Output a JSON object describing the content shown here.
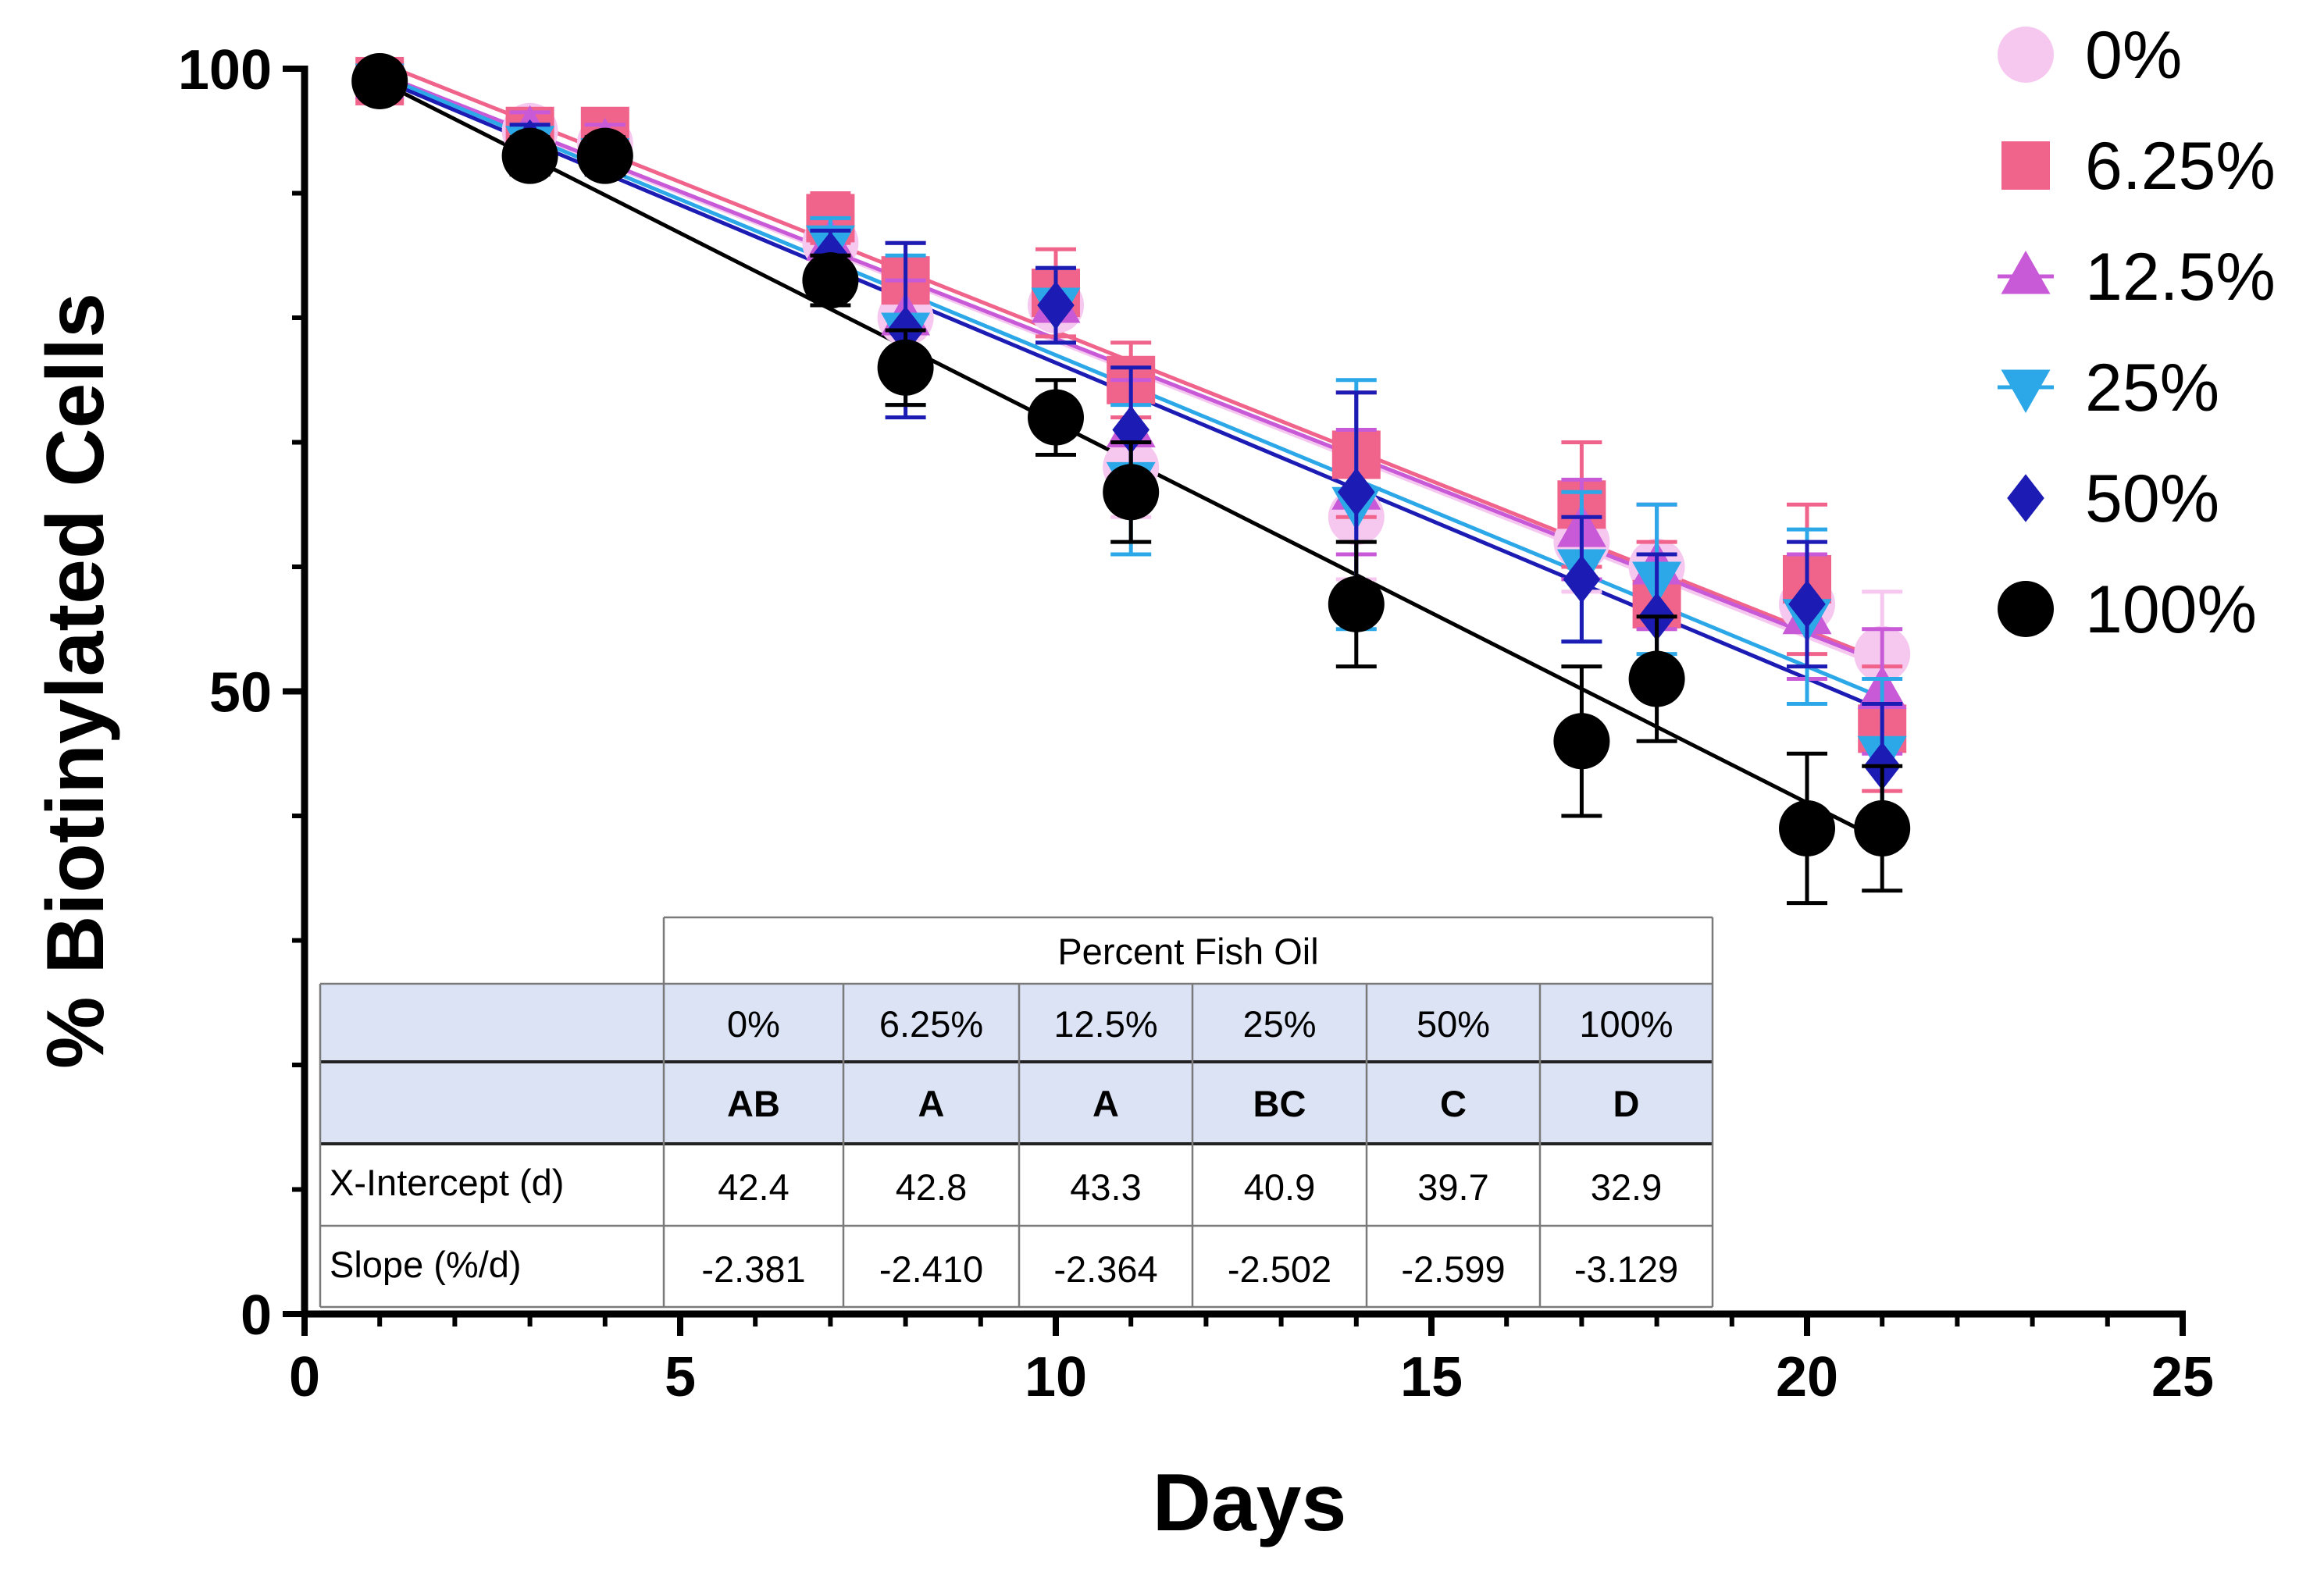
{
  "chart_data": {
    "type": "scatter",
    "title": "",
    "xlabel": "Days",
    "ylabel": "% Biotinylated Cells",
    "xlim": [
      0,
      25
    ],
    "ylim": [
      0,
      100
    ],
    "x_ticks": [
      "0",
      "5",
      "10",
      "15",
      "20",
      "25"
    ],
    "y_ticks": [
      "0",
      "50",
      "100"
    ],
    "grid": false,
    "legend_position": "top-right",
    "series": [
      {
        "name": "0%",
        "color": "#f6c8f0",
        "marker": "circle",
        "x": [
          1,
          3,
          4,
          7,
          8,
          10,
          11,
          14,
          17,
          18,
          20,
          21
        ],
        "y": [
          99,
          95,
          94,
          86,
          80,
          81,
          68,
          64,
          62,
          60,
          57,
          53
        ],
        "err": [
          1,
          1.5,
          1.5,
          2,
          3,
          3,
          4,
          5,
          4,
          5,
          5,
          5
        ],
        "fit": {
          "x0": 1,
          "y0": 99.5,
          "x1": 21,
          "y1": 52.0
        }
      },
      {
        "name": "6.25%",
        "color": "#f0648c",
        "marker": "square",
        "x": [
          1,
          3,
          4,
          7,
          8,
          10,
          11,
          14,
          17,
          18,
          20,
          21
        ],
        "y": [
          99,
          95,
          95,
          88,
          83,
          82,
          75,
          69,
          65,
          57,
          59,
          47
        ],
        "err": [
          1,
          1.5,
          1.5,
          2,
          3,
          3.5,
          3,
          5,
          5,
          5,
          6,
          5
        ],
        "fit": {
          "x0": 1,
          "y0": 100.5,
          "x1": 21,
          "y1": 52.5
        }
      },
      {
        "name": "12.5%",
        "color": "#c85ad8",
        "marker": "triangle-up",
        "x": [
          1,
          3,
          4,
          7,
          8,
          10,
          11,
          14,
          17,
          18,
          20,
          21
        ],
        "y": [
          99,
          95,
          94,
          86,
          80,
          81,
          71,
          66,
          63,
          60,
          56,
          50
        ],
        "err": [
          1,
          1.5,
          1.5,
          2,
          3,
          3,
          4,
          5,
          4,
          5,
          5,
          5
        ],
        "fit": {
          "x0": 1,
          "y0": 99.6,
          "x1": 21,
          "y1": 52.3
        }
      },
      {
        "name": "25%",
        "color": "#2ca8e8",
        "marker": "triangle-down",
        "x": [
          1,
          3,
          4,
          7,
          8,
          10,
          11,
          14,
          17,
          18,
          20,
          21
        ],
        "y": [
          99,
          94,
          93,
          86,
          79,
          81,
          67,
          65,
          60,
          59,
          56,
          45
        ],
        "err": [
          1,
          1.5,
          1.5,
          2,
          6,
          3,
          6,
          10,
          6,
          6,
          7,
          6
        ],
        "fit": {
          "x0": 1,
          "y0": 99.5,
          "x1": 21,
          "y1": 49.5
        }
      },
      {
        "name": "50%",
        "color": "#1c1cb4",
        "marker": "diamond",
        "x": [
          1,
          3,
          4,
          7,
          8,
          10,
          11,
          14,
          17,
          18,
          20,
          21
        ],
        "y": [
          99,
          94,
          93,
          85,
          79,
          81,
          71,
          66,
          59,
          56,
          57,
          44
        ],
        "err": [
          1,
          1.5,
          1.5,
          2,
          7,
          3,
          5,
          8,
          5,
          5,
          5,
          5
        ],
        "fit": {
          "x0": 1,
          "y0": 99.2,
          "x1": 21,
          "y1": 48.5
        }
      },
      {
        "name": "100%",
        "color": "#000000",
        "marker": "circle",
        "x": [
          1,
          3,
          4,
          7,
          8,
          10,
          11,
          14,
          17,
          18,
          20,
          21
        ],
        "y": [
          99,
          93,
          93,
          83,
          76,
          72,
          66,
          57,
          46,
          51,
          39,
          39
        ],
        "err": [
          1,
          1.5,
          1.5,
          2,
          3,
          3,
          4,
          5,
          6,
          5,
          6,
          5
        ],
        "fit": {
          "x0": 1,
          "y0": 99.0,
          "x1": 21,
          "y1": 38.0
        }
      }
    ],
    "table": {
      "group_title": "Percent Fish Oil",
      "columns": [
        "0%",
        "6.25%",
        "12.5%",
        "25%",
        "50%",
        "100%"
      ],
      "letters": [
        "AB",
        "A",
        "A",
        "BC",
        "C",
        "D"
      ],
      "rows": [
        {
          "label": "X-Intercept (d)",
          "values": [
            "42.4",
            "42.8",
            "43.3",
            "40.9",
            "39.7",
            "32.9"
          ]
        },
        {
          "label": "Slope (%/d)",
          "values": [
            "-2.381",
            "-2.410",
            "-2.364",
            "-2.502",
            "-2.599",
            "-3.129"
          ]
        }
      ]
    }
  }
}
